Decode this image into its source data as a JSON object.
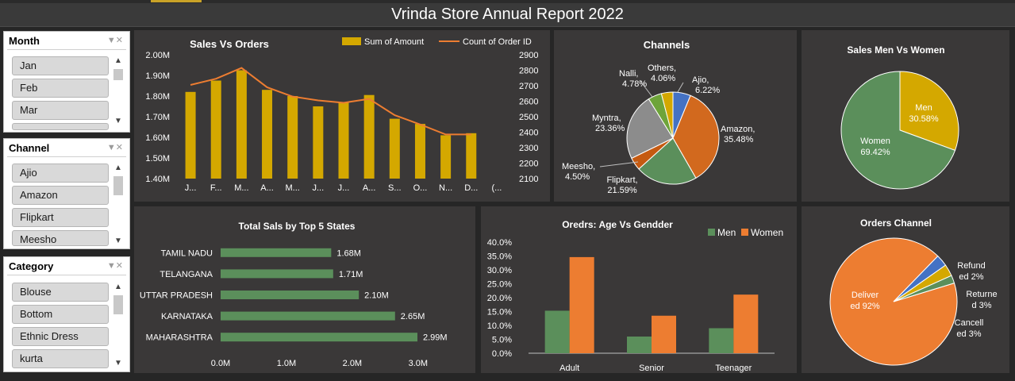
{
  "report": {
    "title": "Vrinda Store Annual Report 2022"
  },
  "slicers": [
    {
      "title": "Month",
      "items": [
        "Jan",
        "Feb",
        "Mar",
        ""
      ]
    },
    {
      "title": "Channel",
      "items": [
        "Ajio",
        "Amazon",
        "Flipkart",
        "Meesho"
      ]
    },
    {
      "title": "Category",
      "items": [
        "Blouse",
        "Bottom",
        "Ethnic Dress",
        "kurta"
      ]
    }
  ],
  "icons": {
    "clear_filter": "filter-clear-icon",
    "scroll_up": "chevron-up-icon",
    "scroll_down": "chevron-down-icon"
  },
  "colors": {
    "gold": "#d4a800",
    "orange": "#ed7d31",
    "green": "#5b8f5b",
    "blue": "#4472c4",
    "gray": "#8c8c8c",
    "panel": "#3a3838"
  },
  "chart_data": [
    {
      "id": "sales-vs-orders",
      "type": "bar+line",
      "title": "Sales Vs Orders",
      "categories": [
        "J...",
        "F...",
        "M...",
        "A...",
        "M...",
        "J...",
        "J...",
        "A...",
        "S...",
        "O...",
        "N...",
        "D...",
        "(..."
      ],
      "series": [
        {
          "name": "Sum of Amount",
          "axis": "left",
          "values": [
            1.82,
            1.875,
            1.925,
            1.83,
            1.8,
            1.75,
            1.77,
            1.805,
            1.69,
            1.665,
            1.61,
            1.62,
            null
          ]
        },
        {
          "name": "Count of Order ID",
          "axis": "right",
          "values": [
            2705,
            2745,
            2815,
            2690,
            2630,
            2605,
            2590,
            2615,
            2510,
            2450,
            2385,
            2385,
            null
          ]
        }
      ],
      "y_left_ticks": [
        "2.00M",
        "1.90M",
        "1.80M",
        "1.70M",
        "1.60M",
        "1.50M",
        "1.40M"
      ],
      "y_right_ticks": [
        "2900",
        "2800",
        "2700",
        "2600",
        "2500",
        "2400",
        "2300",
        "2200",
        "2100"
      ],
      "ylim_left": [
        1.4,
        2.0
      ],
      "ylim_right": [
        2100,
        2900
      ],
      "legend": "top-right"
    },
    {
      "id": "channels",
      "type": "pie",
      "title": "Channels",
      "slices": [
        {
          "name": "Ajio",
          "label": "6.22%",
          "value": 6.22,
          "color": "#4472c4"
        },
        {
          "name": "Amazon",
          "label": "35.48%",
          "value": 35.48,
          "color": "#d2691e"
        },
        {
          "name": "Flipkart",
          "label": "21.59%",
          "value": 21.59,
          "color": "#5b8f5b"
        },
        {
          "name": "Meesho",
          "label": "4.50%",
          "value": 4.5,
          "color": "#c55a11"
        },
        {
          "name": "Myntra",
          "label": "23.36%",
          "value": 23.36,
          "color": "#8c8c8c"
        },
        {
          "name": "Nalli",
          "label": "4.78%",
          "value": 4.78,
          "color": "#6ea43a"
        },
        {
          "name": "Others",
          "label": "4.06%",
          "value": 4.06,
          "color": "#d4a800"
        }
      ]
    },
    {
      "id": "sales-men-women",
      "type": "pie",
      "title": "Sales Men Vs Women",
      "slices": [
        {
          "name": "Men",
          "label": "30.58%",
          "value": 30.58,
          "color": "#d4a800"
        },
        {
          "name": "Women",
          "label": "69.42%",
          "value": 69.42,
          "color": "#5b8f5b"
        }
      ]
    },
    {
      "id": "top-states",
      "type": "bar",
      "orientation": "horizontal",
      "title": "Total  Sals by Top 5 States",
      "categories": [
        "TAMIL NADU",
        "TELANGANA",
        "UTTAR PRADESH",
        "KARNATAKA",
        "MAHARASHTRA"
      ],
      "values": [
        1.68,
        1.71,
        2.1,
        2.65,
        2.99
      ],
      "value_labels": [
        "1.68M",
        "1.71M",
        "2.10M",
        "2.65M",
        "2.99M"
      ],
      "x_ticks": [
        "0.0M",
        "1.0M",
        "2.0M",
        "3.0M"
      ],
      "xlim": [
        0,
        3.4
      ]
    },
    {
      "id": "age-vs-gender",
      "type": "bar",
      "title": "Oredrs: Age Vs Gendder",
      "categories": [
        "Adult",
        "Senior",
        "Teenager"
      ],
      "series": [
        {
          "name": "Men",
          "values": [
            15.3,
            6.0,
            9.0
          ],
          "color": "#5b8f5b"
        },
        {
          "name": "Women",
          "values": [
            34.6,
            13.5,
            21.1
          ],
          "color": "#ed7d31"
        }
      ],
      "y_ticks": [
        "40.0%",
        "35.0%",
        "30.0%",
        "25.0%",
        "20.0%",
        "15.0%",
        "10.0%",
        "5.0%",
        "0.0%"
      ],
      "ylim": [
        0,
        40
      ],
      "legend": "top-right"
    },
    {
      "id": "orders-channel",
      "type": "pie",
      "title": "Orders Channel",
      "slices": [
        {
          "name": "Delivered",
          "label_lines": [
            "Deliver",
            "ed 92%"
          ],
          "value": 92,
          "color": "#ed7d31"
        },
        {
          "name": "Cancelled",
          "label_lines": [
            "Cancell",
            "ed 3%"
          ],
          "value": 3,
          "color": "#4472c4"
        },
        {
          "name": "Returned",
          "label_lines": [
            "Returne",
            "d 3%"
          ],
          "value": 3,
          "color": "#d4a800"
        },
        {
          "name": "Refunded",
          "label_lines": [
            "Refund",
            "ed 2%"
          ],
          "value": 2,
          "color": "#5b8f5b"
        }
      ]
    }
  ]
}
